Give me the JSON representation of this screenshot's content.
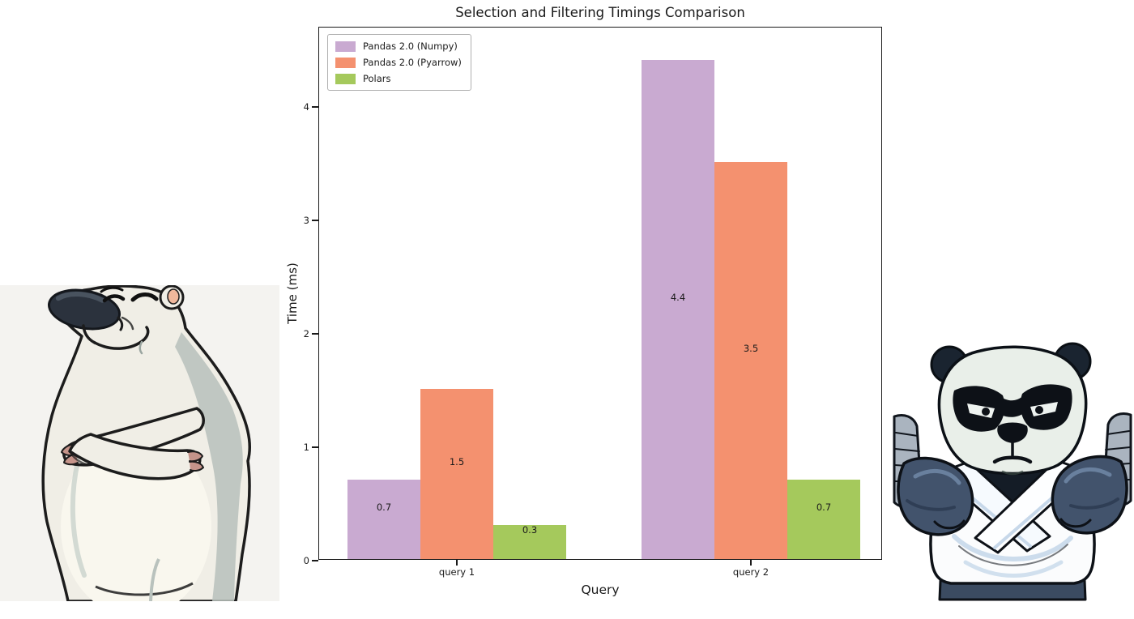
{
  "chart_data": {
    "type": "bar",
    "title": "Selection and Filtering Timings Comparison",
    "xlabel": "Query",
    "ylabel": "Time (ms)",
    "categories": [
      "query 1",
      "query 2"
    ],
    "series": [
      {
        "name": "Pandas 2.0 (Numpy)",
        "color": "#c9aad1",
        "values": [
          0.7,
          4.4
        ]
      },
      {
        "name": "Pandas 2.0 (Pyarrow)",
        "color": "#f4916f",
        "values": [
          1.5,
          3.5
        ]
      },
      {
        "name": "Polars",
        "color": "#a5c95c",
        "values": [
          0.3,
          0.7
        ]
      }
    ],
    "bar_labels": [
      [
        "0.7",
        "4.4"
      ],
      [
        "1.5",
        "3.5"
      ],
      [
        "0.3",
        "0.7"
      ]
    ],
    "yticks": [
      "0",
      "1",
      "2",
      "3",
      "4"
    ],
    "ylim": [
      0,
      4.7
    ],
    "grid": false,
    "legend_position": "upper left"
  },
  "illustrations": {
    "left_icon": "polar-bear-cartoon-icon",
    "right_icon": "boxing-panda-cartoon-icon"
  }
}
